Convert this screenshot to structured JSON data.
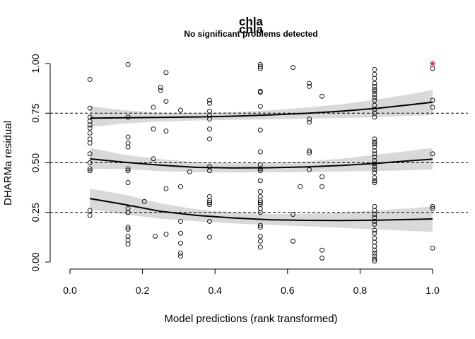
{
  "chart_data": {
    "type": "scatter",
    "title": "chla",
    "title_overlay": "chla",
    "subtitle": "No significant problems detected",
    "xlabel": "Model predictions (rank transformed)",
    "ylabel": "DHARMa residual",
    "xlim": [
      0.0,
      1.0
    ],
    "ylim": [
      0.0,
      1.0
    ],
    "x_ticks": [
      "0.0",
      "0.2",
      "0.4",
      "0.6",
      "0.8",
      "1.0"
    ],
    "y_ticks": [
      "0.00",
      "0.25",
      "0.50",
      "0.75",
      "1.00"
    ],
    "reference_lines": [
      0.25,
      0.5,
      0.75
    ],
    "points": [
      [
        0.055,
        0.92
      ],
      [
        0.055,
        0.775
      ],
      [
        0.055,
        0.73
      ],
      [
        0.055,
        0.71
      ],
      [
        0.055,
        0.69
      ],
      [
        0.055,
        0.675
      ],
      [
        0.055,
        0.65
      ],
      [
        0.055,
        0.62
      ],
      [
        0.055,
        0.6
      ],
      [
        0.055,
        0.545
      ],
      [
        0.055,
        0.5
      ],
      [
        0.055,
        0.47
      ],
      [
        0.055,
        0.46
      ],
      [
        0.055,
        0.26
      ],
      [
        0.055,
        0.235
      ],
      [
        0.16,
        0.995
      ],
      [
        0.16,
        0.73
      ],
      [
        0.16,
        0.63
      ],
      [
        0.16,
        0.6
      ],
      [
        0.16,
        0.58
      ],
      [
        0.16,
        0.47
      ],
      [
        0.16,
        0.46
      ],
      [
        0.16,
        0.4
      ],
      [
        0.16,
        0.27
      ],
      [
        0.16,
        0.25
      ],
      [
        0.16,
        0.175
      ],
      [
        0.16,
        0.165
      ],
      [
        0.16,
        0.13
      ],
      [
        0.16,
        0.11
      ],
      [
        0.16,
        0.09
      ],
      [
        0.205,
        0.305
      ],
      [
        0.23,
        0.78
      ],
      [
        0.23,
        0.67
      ],
      [
        0.23,
        0.52
      ],
      [
        0.235,
        0.13
      ],
      [
        0.25,
        0.88
      ],
      [
        0.25,
        0.865
      ],
      [
        0.265,
        0.955
      ],
      [
        0.265,
        0.81
      ],
      [
        0.265,
        0.66
      ],
      [
        0.265,
        0.37
      ],
      [
        0.265,
        0.14
      ],
      [
        0.305,
        0.765
      ],
      [
        0.305,
        0.38
      ],
      [
        0.305,
        0.205
      ],
      [
        0.305,
        0.145
      ],
      [
        0.305,
        0.095
      ],
      [
        0.305,
        0.045
      ],
      [
        0.305,
        0.03
      ],
      [
        0.33,
        0.455
      ],
      [
        0.385,
        0.815
      ],
      [
        0.385,
        0.8
      ],
      [
        0.385,
        0.76
      ],
      [
        0.385,
        0.74
      ],
      [
        0.385,
        0.72
      ],
      [
        0.385,
        0.67
      ],
      [
        0.385,
        0.62
      ],
      [
        0.385,
        0.48
      ],
      [
        0.385,
        0.46
      ],
      [
        0.385,
        0.33
      ],
      [
        0.385,
        0.31
      ],
      [
        0.385,
        0.3
      ],
      [
        0.385,
        0.29
      ],
      [
        0.385,
        0.205
      ],
      [
        0.385,
        0.125
      ],
      [
        0.525,
        0.995
      ],
      [
        0.525,
        0.985
      ],
      [
        0.525,
        0.975
      ],
      [
        0.525,
        0.86
      ],
      [
        0.525,
        0.855
      ],
      [
        0.525,
        0.785
      ],
      [
        0.525,
        0.665
      ],
      [
        0.525,
        0.555
      ],
      [
        0.525,
        0.49
      ],
      [
        0.525,
        0.47
      ],
      [
        0.525,
        0.46
      ],
      [
        0.525,
        0.41
      ],
      [
        0.525,
        0.355
      ],
      [
        0.525,
        0.33
      ],
      [
        0.525,
        0.31
      ],
      [
        0.525,
        0.3
      ],
      [
        0.525,
        0.29
      ],
      [
        0.525,
        0.27
      ],
      [
        0.525,
        0.25
      ],
      [
        0.525,
        0.185
      ],
      [
        0.525,
        0.175
      ],
      [
        0.525,
        0.13
      ],
      [
        0.525,
        0.105
      ],
      [
        0.525,
        0.075
      ],
      [
        0.615,
        0.98
      ],
      [
        0.615,
        0.24
      ],
      [
        0.615,
        0.105
      ],
      [
        0.635,
        0.38
      ],
      [
        0.66,
        0.9
      ],
      [
        0.66,
        0.885
      ],
      [
        0.66,
        0.72
      ],
      [
        0.66,
        0.705
      ],
      [
        0.66,
        0.56
      ],
      [
        0.66,
        0.55
      ],
      [
        0.66,
        0.465
      ],
      [
        0.695,
        0.835
      ],
      [
        0.695,
        0.43
      ],
      [
        0.695,
        0.38
      ],
      [
        0.695,
        0.06
      ],
      [
        0.695,
        0.02
      ],
      [
        0.84,
        0.97
      ],
      [
        0.84,
        0.945
      ],
      [
        0.84,
        0.925
      ],
      [
        0.84,
        0.9
      ],
      [
        0.84,
        0.885
      ],
      [
        0.84,
        0.87
      ],
      [
        0.84,
        0.86
      ],
      [
        0.84,
        0.845
      ],
      [
        0.84,
        0.83
      ],
      [
        0.84,
        0.815
      ],
      [
        0.84,
        0.79
      ],
      [
        0.84,
        0.77
      ],
      [
        0.84,
        0.75
      ],
      [
        0.84,
        0.73
      ],
      [
        0.84,
        0.62
      ],
      [
        0.84,
        0.605
      ],
      [
        0.84,
        0.595
      ],
      [
        0.84,
        0.58
      ],
      [
        0.84,
        0.56
      ],
      [
        0.84,
        0.545
      ],
      [
        0.84,
        0.53
      ],
      [
        0.84,
        0.51
      ],
      [
        0.84,
        0.495
      ],
      [
        0.84,
        0.48
      ],
      [
        0.84,
        0.465
      ],
      [
        0.84,
        0.45
      ],
      [
        0.84,
        0.425
      ],
      [
        0.84,
        0.41
      ],
      [
        0.84,
        0.4
      ],
      [
        0.84,
        0.28
      ],
      [
        0.84,
        0.26
      ],
      [
        0.84,
        0.24
      ],
      [
        0.84,
        0.225
      ],
      [
        0.84,
        0.205
      ],
      [
        0.84,
        0.19
      ],
      [
        0.84,
        0.16
      ],
      [
        0.84,
        0.145
      ],
      [
        0.84,
        0.12
      ],
      [
        0.84,
        0.1
      ],
      [
        0.84,
        0.08
      ],
      [
        0.84,
        0.06
      ],
      [
        0.84,
        0.045
      ],
      [
        0.84,
        0.03
      ],
      [
        0.84,
        0.015
      ],
      [
        0.84,
        0.005
      ],
      [
        1.0,
        0.975
      ],
      [
        1.0,
        0.815
      ],
      [
        1.0,
        0.78
      ],
      [
        1.0,
        0.545
      ],
      [
        1.0,
        0.28
      ],
      [
        1.0,
        0.27
      ],
      [
        1.0,
        0.07
      ]
    ],
    "outliers": [
      [
        1.0,
        1.0
      ]
    ],
    "quantile_curves": [
      {
        "quantile": 0.75,
        "x": [
          0.055,
          0.15,
          0.25,
          0.35,
          0.45,
          0.55,
          0.65,
          0.75,
          0.85,
          0.95,
          1.0
        ],
        "y": [
          0.725,
          0.727,
          0.729,
          0.731,
          0.735,
          0.741,
          0.749,
          0.76,
          0.775,
          0.795,
          0.805
        ]
      },
      {
        "quantile": 0.5,
        "x": [
          0.055,
          0.15,
          0.25,
          0.35,
          0.45,
          0.55,
          0.65,
          0.75,
          0.85,
          0.95,
          1.0
        ],
        "y": [
          0.52,
          0.503,
          0.488,
          0.477,
          0.474,
          0.475,
          0.479,
          0.487,
          0.498,
          0.512,
          0.518
        ]
      },
      {
        "quantile": 0.25,
        "x": [
          0.055,
          0.15,
          0.25,
          0.35,
          0.45,
          0.55,
          0.65,
          0.75,
          0.85,
          0.95,
          1.0
        ],
        "y": [
          0.32,
          0.29,
          0.255,
          0.235,
          0.222,
          0.213,
          0.21,
          0.209,
          0.211,
          0.215,
          0.217
        ]
      }
    ],
    "quantile_bands": [
      {
        "quantile": 0.75,
        "x": [
          0.055,
          0.15,
          0.25,
          0.35,
          0.45,
          0.55,
          0.65,
          0.75,
          0.85,
          0.95,
          1.0
        ],
        "lower": [
          0.68,
          0.698,
          0.708,
          0.713,
          0.716,
          0.719,
          0.722,
          0.726,
          0.73,
          0.737,
          0.74
        ],
        "upper": [
          0.785,
          0.765,
          0.752,
          0.751,
          0.755,
          0.764,
          0.778,
          0.795,
          0.82,
          0.85,
          0.868
        ]
      },
      {
        "quantile": 0.5,
        "x": [
          0.055,
          0.15,
          0.25,
          0.35,
          0.45,
          0.55,
          0.65,
          0.75,
          0.85,
          0.95,
          1.0
        ],
        "lower": [
          0.47,
          0.468,
          0.458,
          0.452,
          0.451,
          0.452,
          0.453,
          0.456,
          0.459,
          0.463,
          0.466
        ],
        "upper": [
          0.575,
          0.54,
          0.518,
          0.503,
          0.498,
          0.499,
          0.507,
          0.521,
          0.542,
          0.563,
          0.575
        ]
      },
      {
        "quantile": 0.25,
        "x": [
          0.055,
          0.15,
          0.25,
          0.35,
          0.45,
          0.55,
          0.65,
          0.75,
          0.85,
          0.95,
          1.0
        ],
        "lower": [
          0.265,
          0.24,
          0.218,
          0.205,
          0.195,
          0.187,
          0.18,
          0.172,
          0.164,
          0.156,
          0.152
        ],
        "upper": [
          0.37,
          0.34,
          0.295,
          0.265,
          0.25,
          0.242,
          0.243,
          0.25,
          0.26,
          0.272,
          0.28
        ]
      }
    ],
    "colors": {
      "points": "#000000",
      "outlier": "#cc2266",
      "band": "#d9d9d9",
      "curve": "#000000",
      "reference": "#000000"
    }
  }
}
